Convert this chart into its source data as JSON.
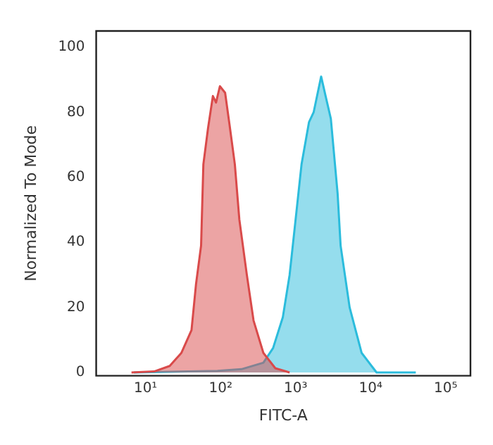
{
  "chart_data": {
    "type": "area",
    "xlabel": "FITC-A",
    "ylabel": "Normalized To Mode",
    "log": "x",
    "grid": false,
    "xlim": [
      2.2,
      214000
    ],
    "ylim": [
      -1,
      105
    ],
    "xticks": [
      {
        "value": 10,
        "label": "10¹"
      },
      {
        "value": 100,
        "label": "10²"
      },
      {
        "value": 1000,
        "label": "10³"
      },
      {
        "value": 10000,
        "label": "10⁴"
      },
      {
        "value": 100000,
        "label": "10⁵"
      }
    ],
    "yticks": [
      0,
      20,
      40,
      60,
      80,
      100
    ],
    "series": [
      {
        "color": "#d94a4a",
        "x": [
          6.5,
          13,
          21,
          30,
          41,
          47,
          55,
          59,
          68,
          79,
          87,
          98,
          115,
          132,
          155,
          178,
          224,
          275,
          372,
          537,
          832
        ],
        "values": [
          0,
          0.3,
          2,
          6,
          13,
          27,
          39,
          64,
          75,
          85,
          83,
          88,
          86,
          76,
          64,
          47,
          30,
          16,
          6,
          1.3,
          0
        ]
      },
      {
        "color": "#2bbcdc",
        "x": [
          7,
          91,
          190,
          372,
          501,
          676,
          832,
          1000,
          1200,
          1510,
          1740,
          2190,
          2510,
          2950,
          3630,
          3980,
          5250,
          7590,
          12000,
          40000
        ],
        "values": [
          0,
          0.5,
          1,
          3,
          7.5,
          17,
          30,
          47,
          64,
          77,
          80,
          91,
          85,
          78,
          55,
          39,
          20,
          6,
          0,
          0
        ]
      }
    ]
  }
}
